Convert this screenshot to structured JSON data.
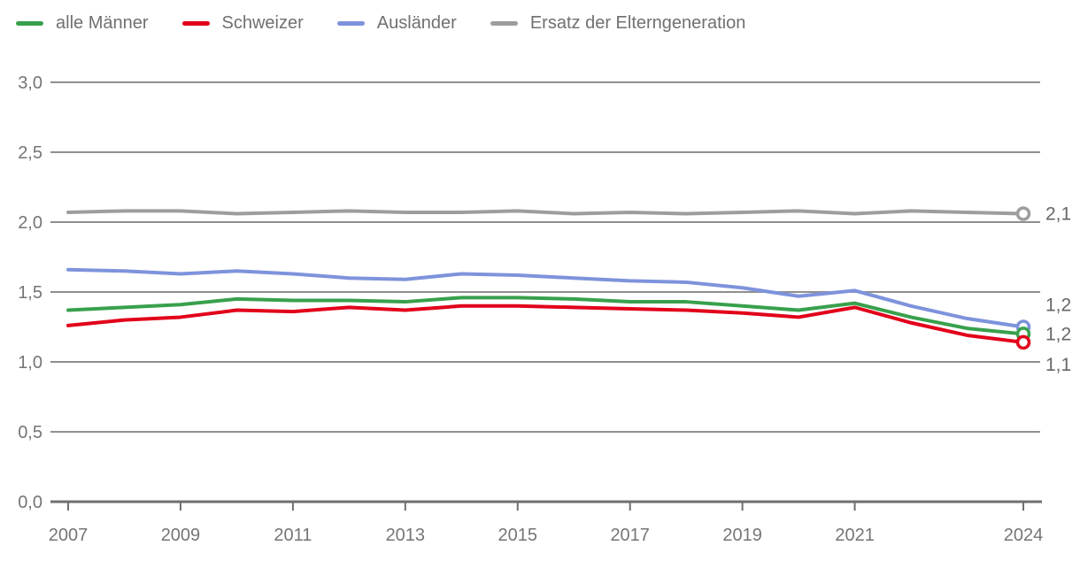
{
  "legend": {
    "items": [
      {
        "label": "alle Männer",
        "color": "#38a04c"
      },
      {
        "label": "Schweizer",
        "color": "#e2001a"
      },
      {
        "label": "Ausländer",
        "color": "#7e93dc"
      },
      {
        "label": "Ersatz der Elterngeneration",
        "color": "#9d9d9d"
      }
    ]
  },
  "chart_data": {
    "type": "line",
    "x": [
      2007,
      2008,
      2009,
      2010,
      2011,
      2012,
      2013,
      2014,
      2015,
      2016,
      2017,
      2018,
      2019,
      2020,
      2021,
      2022,
      2023,
      2024
    ],
    "series": [
      {
        "id": "alle-maenner",
        "name": "alle Männer",
        "color": "#38a04c",
        "values": [
          1.37,
          1.39,
          1.41,
          1.45,
          1.44,
          1.44,
          1.43,
          1.46,
          1.46,
          1.45,
          1.43,
          1.43,
          1.4,
          1.37,
          1.42,
          1.32,
          1.24,
          1.2
        ],
        "end_label": "1,2",
        "end_marker": "open-circle"
      },
      {
        "id": "schweizer",
        "name": "Schweizer",
        "color": "#e2001a",
        "values": [
          1.26,
          1.3,
          1.32,
          1.37,
          1.36,
          1.39,
          1.37,
          1.4,
          1.4,
          1.39,
          1.38,
          1.37,
          1.35,
          1.32,
          1.39,
          1.28,
          1.19,
          1.14
        ],
        "end_label": "1,1",
        "end_marker": "open-circle"
      },
      {
        "id": "auslaender",
        "name": "Ausländer",
        "color": "#7e93dc",
        "values": [
          1.66,
          1.65,
          1.63,
          1.65,
          1.63,
          1.6,
          1.59,
          1.63,
          1.62,
          1.6,
          1.58,
          1.57,
          1.53,
          1.47,
          1.51,
          1.4,
          1.31,
          1.25
        ],
        "end_label": "1,2",
        "end_marker": "open-circle"
      },
      {
        "id": "ersatz-der-elterngeneration",
        "name": "Ersatz der Elterngeneration",
        "color": "#9d9d9d",
        "values": [
          2.07,
          2.08,
          2.08,
          2.06,
          2.07,
          2.08,
          2.07,
          2.07,
          2.08,
          2.06,
          2.07,
          2.06,
          2.07,
          2.08,
          2.06,
          2.08,
          2.07,
          2.06
        ],
        "end_label": "2,1",
        "end_marker": "open-circle"
      }
    ],
    "title": "",
    "xlabel": "",
    "ylabel": "",
    "ylim": [
      0,
      3
    ],
    "ytick_labels": [
      "0,0",
      "0,5",
      "1,0",
      "1,5",
      "2,0",
      "2,5",
      "3,0"
    ],
    "xticks": [
      2007,
      2009,
      2011,
      2013,
      2015,
      2017,
      2019,
      2021,
      2024
    ],
    "xtick_labels": [
      "2007",
      "2009",
      "2011",
      "2013",
      "2015",
      "2017",
      "2019",
      "2021",
      "2024"
    ],
    "grid": true,
    "legend_position": "top-left"
  }
}
